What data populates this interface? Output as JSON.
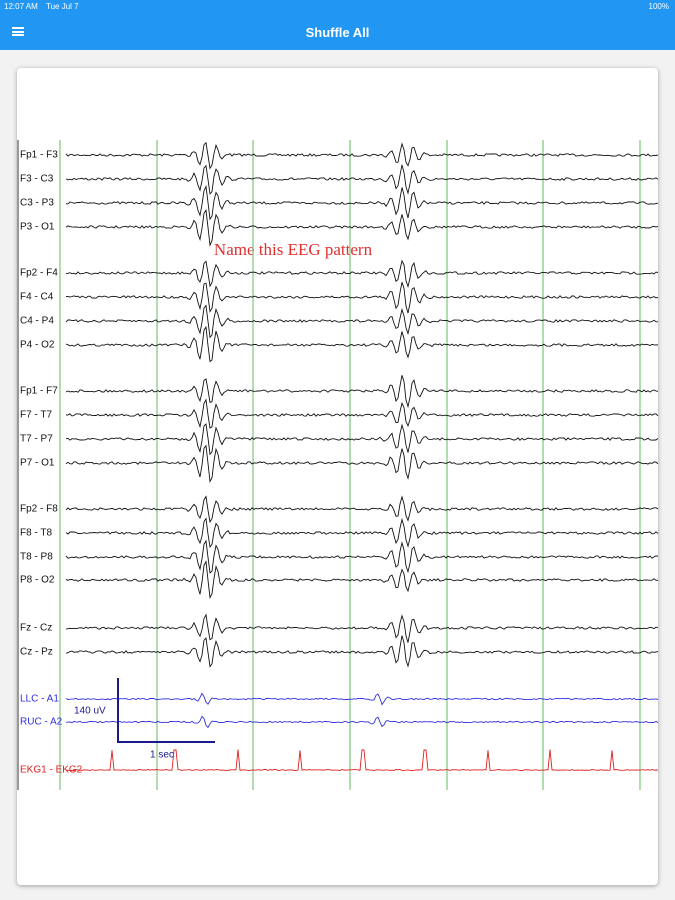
{
  "status_bar": {
    "time": "12:07 AM",
    "date": "Tue Jul 7",
    "battery": "100%"
  },
  "header": {
    "title": "Shuffle All"
  },
  "eeg": {
    "question": "Name this EEG pattern",
    "channels": [
      {
        "label": "Fp1 - F3",
        "color": "#111111"
      },
      {
        "label": "F3 - C3",
        "color": "#111111"
      },
      {
        "label": "C3 - P3",
        "color": "#111111"
      },
      {
        "label": "P3 - O1",
        "color": "#111111"
      },
      {
        "label": "Fp2 - F4",
        "color": "#111111"
      },
      {
        "label": "F4 - C4",
        "color": "#111111"
      },
      {
        "label": "C4 - P4",
        "color": "#111111"
      },
      {
        "label": "P4 - O2",
        "color": "#111111"
      },
      {
        "label": "Fp1 - F7",
        "color": "#111111"
      },
      {
        "label": "F7 - T7",
        "color": "#111111"
      },
      {
        "label": "T7 - P7",
        "color": "#111111"
      },
      {
        "label": "P7 - O1",
        "color": "#111111"
      },
      {
        "label": "Fp2 - F8",
        "color": "#111111"
      },
      {
        "label": "F8 - T8",
        "color": "#111111"
      },
      {
        "label": "T8 - P8",
        "color": "#111111"
      },
      {
        "label": "P8 - O2",
        "color": "#111111"
      },
      {
        "label": "Fz - Cz",
        "color": "#111111"
      },
      {
        "label": "Cz - Pz",
        "color": "#111111"
      },
      {
        "label": "LLC - A1",
        "color": "#2f2fe0"
      },
      {
        "label": "RUC - A2",
        "color": "#2f2fe0"
      },
      {
        "label": "EKG1 - EKG2",
        "color": "#e02020"
      }
    ],
    "scale": {
      "amplitude": "140 uV",
      "time": "1 sec"
    }
  }
}
